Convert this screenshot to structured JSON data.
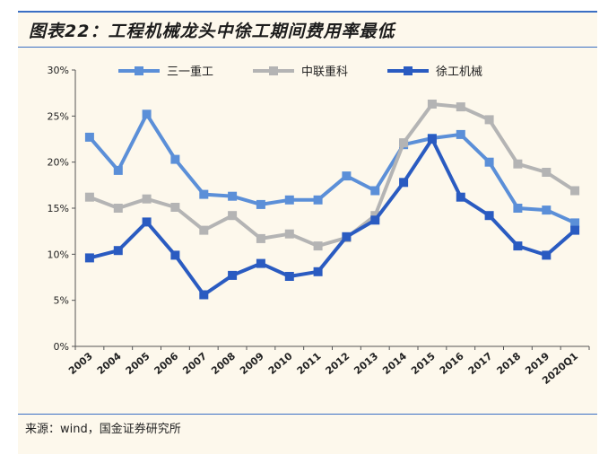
{
  "title": "图表22：工程机械龙头中徐工期间费用率最低",
  "source": "来源：wind，国金证券研究所",
  "chart_data": {
    "type": "line",
    "title": "",
    "xlabel": "",
    "ylabel": "",
    "x": [
      "2003",
      "2004",
      "2005",
      "2006",
      "2007",
      "2008",
      "2009",
      "2010",
      "2011",
      "2012",
      "2013",
      "2014",
      "2015",
      "2016",
      "2017",
      "2018",
      "2019",
      "2020Q1"
    ],
    "ylim": [
      0,
      30
    ],
    "yticks": [
      "0%",
      "5%",
      "10%",
      "15%",
      "20%",
      "25%",
      "30%"
    ],
    "ytick_values": [
      0,
      5,
      10,
      15,
      20,
      25,
      30
    ],
    "grid": false,
    "legend": "top",
    "series": [
      {
        "name": "三一重工",
        "color": "#5b8fd8",
        "values": [
          22.7,
          19.1,
          25.2,
          20.3,
          16.5,
          16.3,
          15.4,
          15.9,
          15.9,
          18.5,
          16.9,
          21.9,
          22.6,
          23.0,
          20.0,
          15.0,
          14.8,
          13.4
        ]
      },
      {
        "name": "中联重科",
        "color": "#b4b4b4",
        "values": [
          16.2,
          15.0,
          16.0,
          15.1,
          12.6,
          14.2,
          11.7,
          12.2,
          10.9,
          11.8,
          14.2,
          22.1,
          26.3,
          26.0,
          24.6,
          19.8,
          18.9,
          16.9
        ]
      },
      {
        "name": "徐工机械",
        "color": "#2a5bc1",
        "values": [
          9.6,
          10.4,
          13.5,
          9.9,
          5.6,
          7.7,
          9.0,
          7.6,
          8.1,
          11.9,
          13.7,
          17.8,
          22.5,
          16.2,
          14.2,
          10.9,
          9.9,
          12.6
        ]
      }
    ]
  }
}
